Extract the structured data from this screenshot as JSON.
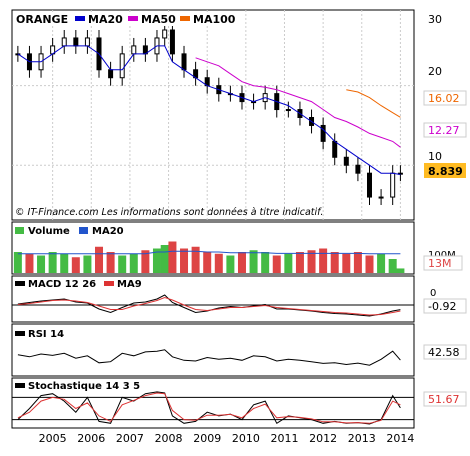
{
  "colors": {
    "price_candle": "#000000",
    "ma20": "#0000cc",
    "ma50": "#cc00cc",
    "ma100": "#ee6600",
    "vol_up": "#44bb44",
    "vol_down": "#dd4444",
    "vol_ma20": "#2255cc",
    "macd": "#000000",
    "ma9": "#dd3333",
    "rsi": "#000000",
    "stoch": "#000000",
    "stoch_signal": "#dd3333",
    "badge_ma50": "#cc00cc",
    "badge_ma100": "#ee6600",
    "badge_last_bg": "#ffbb22",
    "badge_vol": "#dd4444",
    "grid": "#cccccc"
  },
  "chart_data": [
    {
      "type": "candlestick",
      "legend": {
        "ticker": "ORANGE",
        "ma20": "MA20",
        "ma50": "MA50",
        "ma100": "MA100"
      },
      "ylim": [
        0,
        30
      ],
      "y_ticks": [
        "30",
        "20",
        "10"
      ],
      "last_badges": {
        "ma100": "16.02",
        "ma50": "12.27",
        "last": "8.839"
      },
      "footer": "© IT-Finance.com   Les informations sont données à titre indicatif.",
      "x_labels": [
        "2005",
        "2006",
        "2007",
        "2008",
        "2009",
        "2010",
        "2011",
        "2012",
        "2013",
        "2014"
      ],
      "x": [
        2004.1,
        2004.4,
        2004.7,
        2005.0,
        2005.3,
        2005.6,
        2005.9,
        2006.2,
        2006.5,
        2006.8,
        2007.1,
        2007.4,
        2007.7,
        2007.9,
        2008.1,
        2008.4,
        2008.7,
        2009.0,
        2009.3,
        2009.6,
        2009.9,
        2010.2,
        2010.5,
        2010.8,
        2011.1,
        2011.4,
        2011.7,
        2012.0,
        2012.3,
        2012.6,
        2012.9,
        2013.2,
        2013.5,
        2013.8,
        2014.0
      ],
      "close": [
        24,
        22,
        24,
        25,
        26,
        25,
        26,
        22,
        21,
        24,
        25,
        24,
        26,
        27,
        24,
        22,
        21,
        20,
        19,
        19,
        18,
        18,
        19,
        17,
        17,
        16,
        15,
        13,
        11,
        10,
        9,
        6,
        6,
        9,
        9
      ],
      "ma20": [
        24,
        23,
        23,
        24,
        25,
        25,
        25,
        24,
        22,
        22,
        24,
        24,
        25,
        25,
        23,
        22,
        21,
        20,
        19.5,
        19,
        18.5,
        18,
        18.5,
        18,
        17.5,
        16.5,
        15.5,
        14.5,
        13,
        12,
        11,
        10,
        9,
        9,
        8.839
      ],
      "ma50": [
        null,
        null,
        null,
        null,
        null,
        null,
        null,
        null,
        null,
        null,
        null,
        null,
        null,
        null,
        null,
        null,
        23.5,
        23,
        22.5,
        21.5,
        20.5,
        20,
        19.8,
        19.5,
        19,
        18.5,
        18,
        17,
        16,
        15.5,
        14.8,
        14,
        13.5,
        13,
        12.27
      ],
      "ma100": [
        null,
        null,
        null,
        null,
        null,
        null,
        null,
        null,
        null,
        null,
        null,
        null,
        null,
        null,
        null,
        null,
        null,
        null,
        null,
        null,
        null,
        null,
        null,
        null,
        null,
        null,
        null,
        null,
        null,
        19.5,
        19.2,
        18.5,
        17.5,
        16.6,
        16.02
      ]
    },
    {
      "type": "bar",
      "legend": {
        "volume": "Volume",
        "ma20": "MA20"
      },
      "y_ticks": [
        "100M"
      ],
      "last_badge": "13M",
      "values": [
        60,
        55,
        50,
        60,
        55,
        45,
        50,
        75,
        60,
        50,
        55,
        65,
        70,
        80,
        90,
        70,
        75,
        60,
        55,
        50,
        60,
        65,
        60,
        50,
        55,
        60,
        65,
        70,
        60,
        55,
        60,
        50,
        55,
        40,
        13
      ],
      "ma20": [
        55,
        55,
        55,
        55,
        55,
        55,
        55,
        55,
        55,
        55,
        55,
        55,
        60,
        60,
        62,
        62,
        62,
        60,
        60,
        58,
        58,
        58,
        58,
        56,
        56,
        56,
        56,
        56,
        56,
        56,
        56,
        55,
        55,
        55,
        55
      ]
    },
    {
      "type": "line",
      "legend": {
        "macd": "MACD 12 26",
        "ma9": "MA9"
      },
      "y_ticks": [
        "0"
      ],
      "last_badge": "-0.92",
      "ylim": [
        -3,
        3
      ],
      "macd": [
        0.2,
        0.5,
        0.8,
        1.0,
        1.2,
        0.6,
        0.4,
        -0.8,
        -1.5,
        -0.5,
        0.4,
        0.6,
        1.2,
        2.0,
        0.5,
        -0.5,
        -1.5,
        -1.2,
        -0.6,
        -0.3,
        -0.5,
        -0.2,
        0.1,
        -0.8,
        -0.8,
        -1.0,
        -1.2,
        -1.5,
        -1.7,
        -1.8,
        -2.0,
        -2.2,
        -1.8,
        -1.2,
        -0.92
      ],
      "ma9": [
        0.1,
        0.3,
        0.6,
        0.9,
        1.0,
        0.8,
        0.5,
        -0.2,
        -0.9,
        -0.9,
        -0.2,
        0.3,
        0.9,
        1.5,
        1.0,
        0.0,
        -0.9,
        -1.1,
        -0.8,
        -0.5,
        -0.5,
        -0.3,
        -0.1,
        -0.5,
        -0.7,
        -0.9,
        -1.1,
        -1.3,
        -1.5,
        -1.6,
        -1.8,
        -2.0,
        -1.9,
        -1.5,
        -1.2
      ]
    },
    {
      "type": "line",
      "legend": {
        "rsi": "RSI 14"
      },
      "last_badge": "42.58",
      "ylim": [
        0,
        100
      ],
      "rsi": [
        58,
        52,
        60,
        56,
        62,
        48,
        55,
        35,
        38,
        62,
        55,
        66,
        68,
        72,
        52,
        42,
        40,
        50,
        45,
        48,
        42,
        55,
        52,
        40,
        45,
        42,
        38,
        33,
        35,
        30,
        34,
        28,
        45,
        68,
        42.58
      ]
    },
    {
      "type": "line",
      "legend": {
        "stoch": "Stochastique 14 3 5"
      },
      "last_badge": "51.67",
      "ylim": [
        0,
        100
      ],
      "stoch": [
        20,
        50,
        85,
        90,
        70,
        40,
        80,
        15,
        10,
        80,
        70,
        90,
        95,
        92,
        30,
        10,
        15,
        40,
        30,
        35,
        20,
        60,
        70,
        10,
        30,
        25,
        20,
        10,
        15,
        10,
        12,
        8,
        20,
        85,
        51.67
      ],
      "signal": [
        25,
        40,
        70,
        80,
        75,
        50,
        65,
        30,
        15,
        60,
        72,
        85,
        92,
        90,
        45,
        20,
        18,
        32,
        32,
        34,
        25,
        50,
        62,
        25,
        28,
        26,
        22,
        14,
        14,
        11,
        12,
        10,
        18,
        70,
        60
      ]
    }
  ]
}
